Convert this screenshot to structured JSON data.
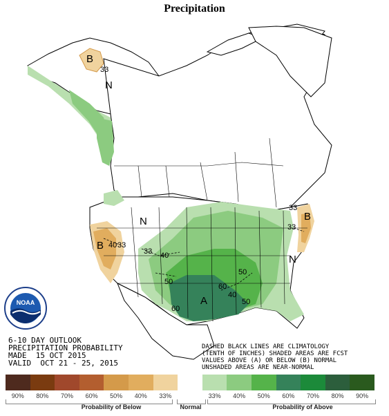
{
  "title": "Precipitation",
  "map": {
    "region_labels": {
      "alaska_b": "B",
      "alaska_n": "N",
      "alaska_33": "33",
      "west_b": "B",
      "west_40": "40",
      "west_33": "33",
      "east_b": "B",
      "east_33a": "33",
      "east_33b": "33",
      "east_n": "N",
      "mid_n": "N",
      "center_a": "A",
      "c_33": "33",
      "c_40": "40",
      "c_50a": "50",
      "c_50b": "50",
      "c_60a": "60",
      "c_60b": "60",
      "c_40b": "40",
      "c_50c": "50"
    }
  },
  "outlook": {
    "line1": "6-10 DAY OUTLOOK",
    "line2": "PRECIPITATION PROBABILITY",
    "line3": "MADE  15 OCT 2015",
    "line4": "VALID  OCT 21 - 25, 2015"
  },
  "note": {
    "line1": "DASHED BLACK LINES ARE CLIMATOLOGY",
    "line2": "(TENTH OF INCHES) SHADED AREAS ARE FCST",
    "line3": "VALUES ABOVE (A) OR BELOW (B) NORMAL",
    "line4": "UNSHADED AREAS ARE NEAR-NORMAL"
  },
  "logo": {
    "text": "NOAA",
    "icon": "noaa-logo"
  },
  "legend": {
    "colors": [
      "#4e2a1e",
      "#7a3b10",
      "#a0482c",
      "#b35e2f",
      "#d49a4a",
      "#e1ad5e",
      "#f0d39e",
      "#ffffff",
      "#b9dfaf",
      "#8ccb80",
      "#55b34a",
      "#35825a",
      "#1c8a3a",
      "#2c5e3c",
      "#2a5a1e"
    ],
    "ticks": [
      "90%",
      "80%",
      "70%",
      "60%",
      "50%",
      "40%",
      "33%",
      "33%",
      "40%",
      "50%",
      "60%",
      "70%",
      "80%",
      "90%"
    ],
    "below_label": "Probability of Below",
    "normal_label": "Normal",
    "above_label": "Probability of Above"
  }
}
